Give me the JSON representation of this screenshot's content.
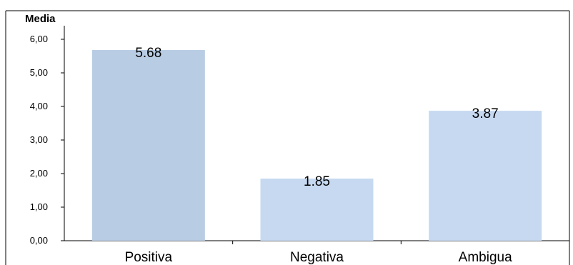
{
  "chart_data": {
    "type": "bar",
    "title": "",
    "ylabel": "Media",
    "xlabel": "",
    "categories": [
      "Positiva",
      "Negativa",
      "Ambigua"
    ],
    "values": [
      5.68,
      1.85,
      3.87
    ],
    "data_labels": [
      "5.68",
      "1.85",
      "3.87"
    ],
    "ylim": [
      0,
      6
    ],
    "yticks": [
      0,
      1,
      2,
      3,
      4,
      5,
      6
    ],
    "ytick_labels": [
      "0,00",
      "1,00",
      "2,00",
      "3,00",
      "4,00",
      "5,00",
      "6,00"
    ],
    "grid": false,
    "legend": "none",
    "colors": {
      "bar_highlight": "#b8cce4",
      "bar": "#c6d9f1",
      "axis": "#000000",
      "frame": "#000000"
    }
  }
}
